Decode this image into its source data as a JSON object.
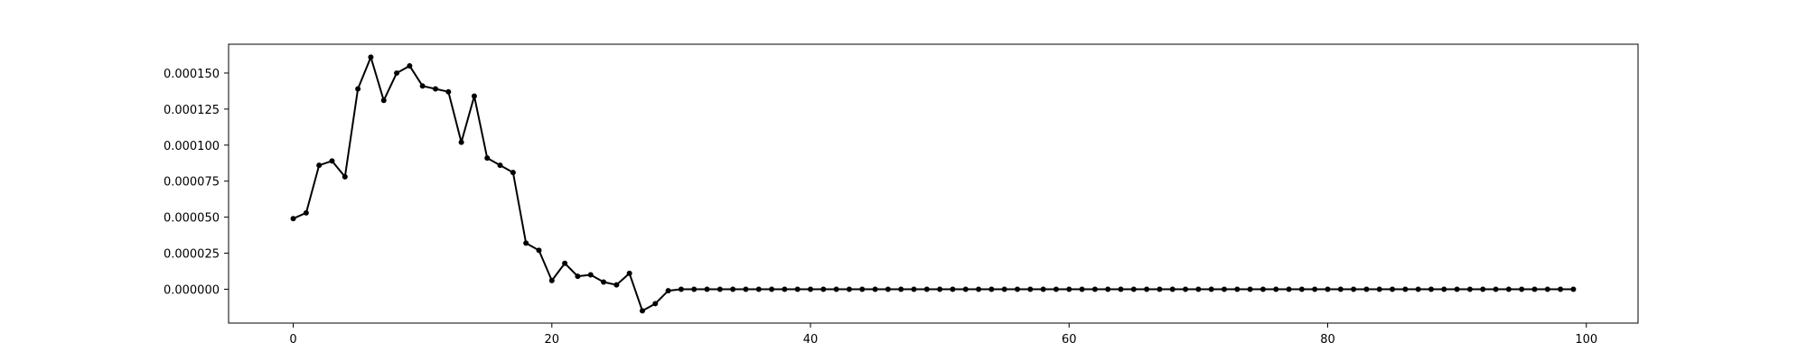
{
  "chart_data": {
    "type": "line",
    "title": "",
    "xlabel": "",
    "ylabel": "",
    "xlim": [
      -5,
      104
    ],
    "ylim": [
      -2.35e-05,
      0.00017
    ],
    "x_ticks": [
      {
        "value": 0,
        "label": "0"
      },
      {
        "value": 20,
        "label": "20"
      },
      {
        "value": 40,
        "label": "40"
      },
      {
        "value": 60,
        "label": "60"
      },
      {
        "value": 80,
        "label": "80"
      },
      {
        "value": 100,
        "label": "100"
      }
    ],
    "y_ticks": [
      {
        "value": 0.0,
        "label": "0.000000"
      },
      {
        "value": 2.5e-05,
        "label": "0.000025"
      },
      {
        "value": 5e-05,
        "label": "0.000050"
      },
      {
        "value": 7.5e-05,
        "label": "0.000075"
      },
      {
        "value": 0.0001,
        "label": "0.000100"
      },
      {
        "value": 0.000125,
        "label": "0.000125"
      },
      {
        "value": 0.00015,
        "label": "0.000150"
      }
    ],
    "grid": false,
    "legend": "none",
    "colors": {
      "line": "#000000",
      "axes": "#000000",
      "background": "#ffffff"
    },
    "series": [
      {
        "values": [
          4.9e-05,
          5.3e-05,
          8.6e-05,
          8.9e-05,
          7.8e-05,
          0.000139,
          0.000161,
          0.000131,
          0.00015,
          0.000155,
          0.000141,
          0.000139,
          0.000137,
          0.000102,
          0.000134,
          9.1e-05,
          8.6e-05,
          8.1e-05,
          3.2e-05,
          2.7e-05,
          6e-06,
          1.8e-05,
          9e-06,
          1e-05,
          5e-06,
          3e-06,
          1.1e-05,
          -1.5e-05,
          -1e-05,
          -1e-06,
          0.0,
          0.0,
          0.0,
          0.0,
          0.0,
          0.0,
          0.0,
          0.0,
          0.0,
          0.0,
          0.0,
          0.0,
          0.0,
          0.0,
          0.0,
          0.0,
          0.0,
          0.0,
          0.0,
          0.0,
          0.0,
          0.0,
          0.0,
          0.0,
          0.0,
          0.0,
          0.0,
          0.0,
          0.0,
          0.0,
          0.0,
          0.0,
          0.0,
          0.0,
          0.0,
          0.0,
          0.0,
          0.0,
          0.0,
          0.0,
          0.0,
          0.0,
          0.0,
          0.0,
          0.0,
          0.0,
          0.0,
          0.0,
          0.0,
          0.0,
          0.0,
          0.0,
          0.0,
          0.0,
          0.0,
          0.0,
          0.0,
          0.0,
          0.0,
          0.0,
          0.0,
          0.0,
          0.0,
          0.0,
          0.0,
          0.0,
          0.0,
          0.0,
          0.0,
          0.0
        ]
      }
    ]
  }
}
